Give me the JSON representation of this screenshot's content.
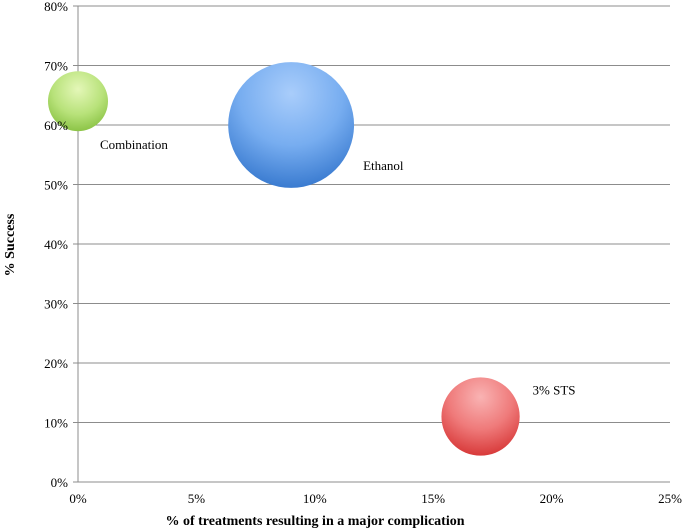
{
  "chart_data": {
    "type": "bubble",
    "title": "",
    "xlabel": "% of treatments resulting in a major complication",
    "ylabel": "% Success",
    "xlim": [
      0,
      25
    ],
    "ylim": [
      0,
      80
    ],
    "x_ticks": [
      "0%",
      "5%",
      "10%",
      "15%",
      "20%",
      "25%"
    ],
    "y_ticks": [
      "0%",
      "10%",
      "20%",
      "30%",
      "40%",
      "50%",
      "60%",
      "70%",
      "80%"
    ],
    "grid": "horizontal",
    "legend": "none",
    "bubbles": [
      {
        "label": "Combination",
        "x": 0,
        "y": 64,
        "size": 1,
        "color": "#92d050"
      },
      {
        "label": "Ethanol",
        "x": 9,
        "y": 60,
        "size": 4.4,
        "color": "#4f8fe0"
      },
      {
        "label": "3% STS",
        "x": 17,
        "y": 11,
        "size": 1.7,
        "color": "#e84a4a"
      }
    ]
  }
}
